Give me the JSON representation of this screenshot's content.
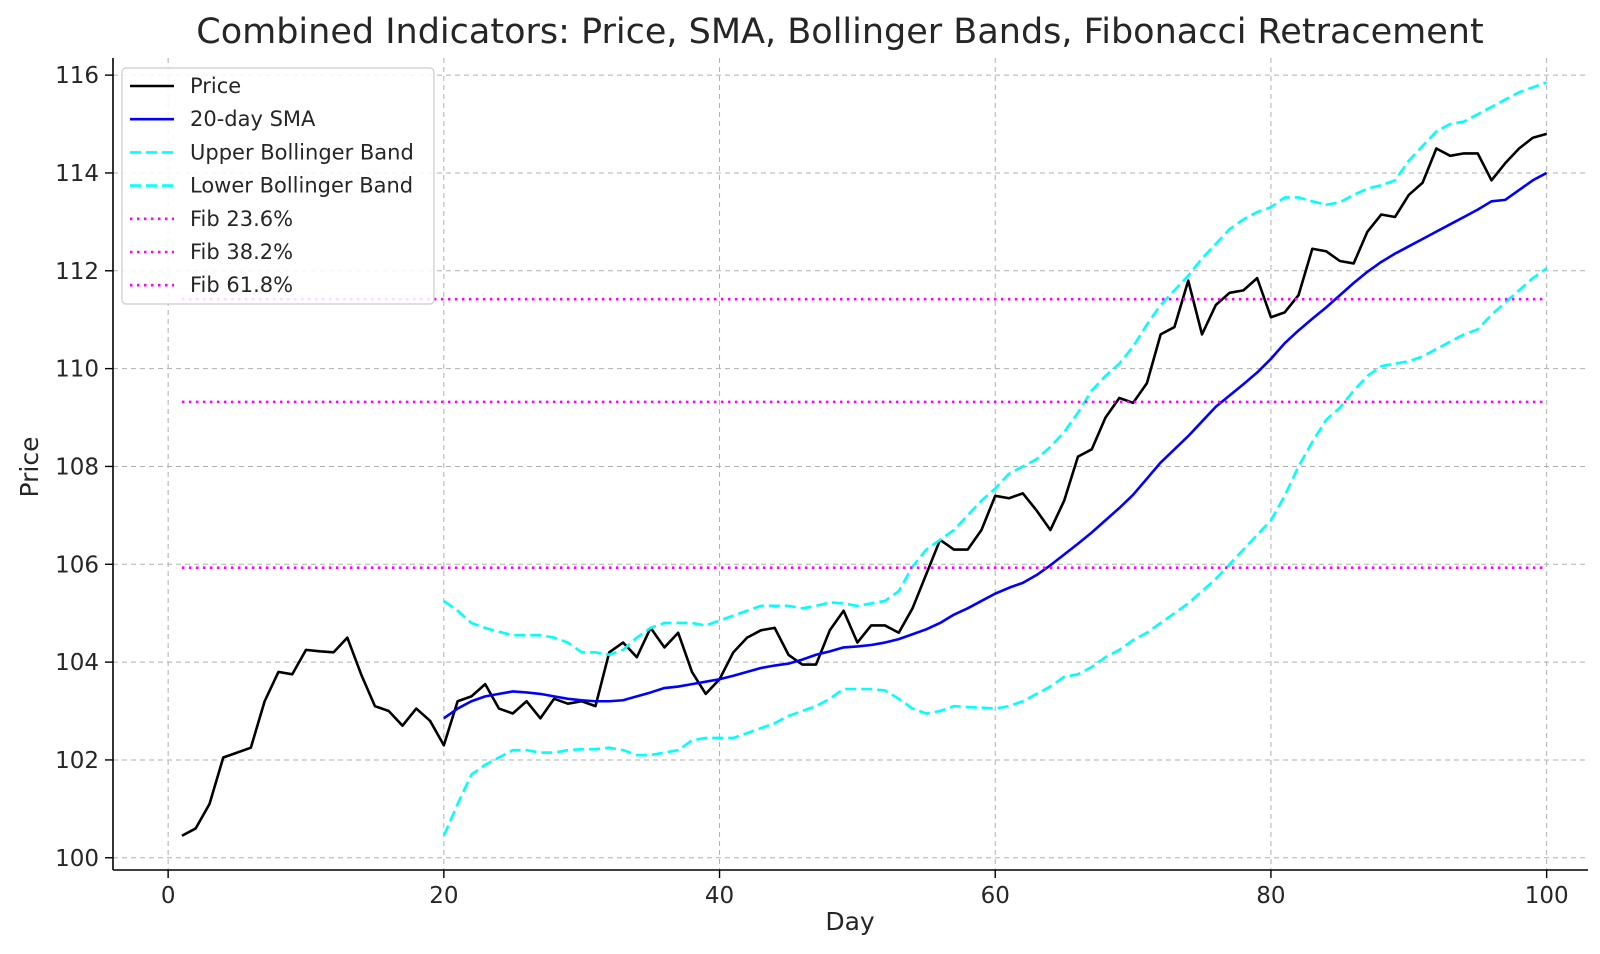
{
  "chart_data": {
    "type": "line",
    "title": "Combined Indicators: Price, SMA, Bollinger Bands, Fibonacci Retracement",
    "xlabel": "Day",
    "ylabel": "Price",
    "xlim": [
      -4,
      103
    ],
    "ylim": [
      99.75,
      116.35
    ],
    "xticks": [
      0,
      20,
      40,
      60,
      80,
      100
    ],
    "yticks": [
      100,
      102,
      104,
      106,
      108,
      110,
      112,
      114,
      116
    ],
    "grid": true,
    "legend_position": "upper-left",
    "series": [
      {
        "name": "Price",
        "style": "solid",
        "color": "#000000",
        "x_start": 1,
        "values": [
          100.45,
          100.6,
          101.1,
          102.05,
          102.15,
          102.25,
          103.2,
          103.8,
          103.75,
          104.25,
          104.22,
          104.2,
          104.5,
          103.75,
          103.1,
          103.0,
          102.7,
          103.05,
          102.8,
          102.3,
          103.2,
          103.3,
          103.55,
          103.05,
          102.95,
          103.2,
          102.85,
          103.25,
          103.15,
          103.2,
          103.1,
          104.2,
          104.4,
          104.1,
          104.7,
          104.3,
          104.6,
          103.8,
          103.35,
          103.65,
          104.2,
          104.5,
          104.65,
          104.7,
          104.15,
          103.95,
          103.95,
          104.65,
          105.05,
          104.4,
          104.75,
          104.75,
          104.6,
          105.1,
          105.8,
          106.5,
          106.3,
          106.3,
          106.7,
          107.4,
          107.35,
          107.45,
          107.1,
          106.7,
          107.3,
          108.2,
          108.35,
          109.0,
          109.4,
          109.3,
          109.7,
          110.7,
          110.85,
          111.8,
          110.7,
          111.3,
          111.55,
          111.6,
          111.85,
          111.05,
          111.15,
          111.5,
          112.45,
          112.4,
          112.2,
          112.15,
          112.8,
          113.15,
          113.1,
          113.55,
          113.8,
          114.5,
          114.35,
          114.4,
          114.4,
          113.85,
          114.2,
          114.5,
          114.72,
          114.8
        ]
      },
      {
        "name": "20-day SMA",
        "style": "solid",
        "color": "#0000ff",
        "x_start": 20,
        "values": [
          102.85,
          103.05,
          103.2,
          103.3,
          103.35,
          103.4,
          103.38,
          103.35,
          103.3,
          103.25,
          103.22,
          103.2,
          103.2,
          103.22,
          103.3,
          103.38,
          103.47,
          103.5,
          103.55,
          103.6,
          103.65,
          103.72,
          103.8,
          103.88,
          103.93,
          103.97,
          104.05,
          104.15,
          104.22,
          104.3,
          104.32,
          104.35,
          104.4,
          104.47,
          104.57,
          104.67,
          104.8,
          104.97,
          105.1,
          105.25,
          105.4,
          105.52,
          105.62,
          105.78,
          105.98,
          106.2,
          106.42,
          106.65,
          106.9,
          107.15,
          107.42,
          107.75,
          108.08,
          108.35,
          108.62,
          108.92,
          109.22,
          109.45,
          109.68,
          109.92,
          110.2,
          110.52,
          110.78,
          111.02,
          111.25,
          111.5,
          111.75,
          111.98,
          112.18,
          112.35,
          112.5,
          112.65,
          112.8,
          112.95,
          113.1,
          113.25,
          113.42,
          113.45,
          113.65,
          113.85,
          114.0
        ]
      },
      {
        "name": "Upper Bollinger Band",
        "style": "dashed",
        "color": "#00ffff",
        "x_start": 20,
        "values": [
          105.25,
          105.05,
          104.8,
          104.7,
          104.62,
          104.55,
          104.55,
          104.55,
          104.5,
          104.4,
          104.2,
          104.2,
          104.15,
          104.25,
          104.5,
          104.7,
          104.8,
          104.8,
          104.8,
          104.75,
          104.85,
          104.95,
          105.05,
          105.15,
          105.15,
          105.15,
          105.1,
          105.15,
          105.22,
          105.2,
          105.15,
          105.2,
          105.25,
          105.45,
          105.95,
          106.3,
          106.5,
          106.7,
          107.0,
          107.3,
          107.55,
          107.85,
          108.0,
          108.15,
          108.4,
          108.7,
          109.1,
          109.55,
          109.85,
          110.1,
          110.45,
          110.9,
          111.3,
          111.6,
          111.9,
          112.25,
          112.55,
          112.85,
          113.05,
          113.2,
          113.3,
          113.5,
          113.5,
          113.42,
          113.35,
          113.4,
          113.55,
          113.68,
          113.75,
          113.85,
          114.25,
          114.55,
          114.85,
          115.0,
          115.05,
          115.2,
          115.35,
          115.5,
          115.65,
          115.75,
          115.85
        ]
      },
      {
        "name": "Lower Bollinger Band",
        "style": "dashed",
        "color": "#00ffff",
        "x_start": 20,
        "values": [
          100.45,
          101.1,
          101.7,
          101.9,
          102.05,
          102.2,
          102.2,
          102.15,
          102.15,
          102.2,
          102.22,
          102.22,
          102.25,
          102.2,
          102.1,
          102.1,
          102.15,
          102.2,
          102.4,
          102.45,
          102.45,
          102.45,
          102.55,
          102.65,
          102.75,
          102.9,
          103.0,
          103.1,
          103.25,
          103.45,
          103.45,
          103.45,
          103.42,
          103.25,
          103.05,
          102.95,
          103.0,
          103.1,
          103.08,
          103.07,
          103.05,
          103.1,
          103.2,
          103.35,
          103.5,
          103.7,
          103.75,
          103.9,
          104.1,
          104.25,
          104.45,
          104.6,
          104.8,
          105.0,
          105.2,
          105.45,
          105.7,
          106.0,
          106.3,
          106.6,
          106.9,
          107.4,
          108.0,
          108.5,
          108.95,
          109.2,
          109.55,
          109.85,
          110.05,
          110.1,
          110.15,
          110.25,
          110.4,
          110.55,
          110.7,
          110.8,
          111.1,
          111.35,
          111.6,
          111.85,
          112.05
        ]
      },
      {
        "name": "Fib 23.6%",
        "style": "dotted",
        "color": "#ff00ff",
        "x_start": 1,
        "x_end": 100,
        "constant": 111.42
      },
      {
        "name": "Fib 38.2%",
        "style": "dotted",
        "color": "#ff00ff",
        "x_start": 1,
        "x_end": 100,
        "constant": 109.32
      },
      {
        "name": "Fib 61.8%",
        "style": "dotted",
        "color": "#ff00ff",
        "x_start": 1,
        "x_end": 100,
        "constant": 105.93
      }
    ]
  }
}
